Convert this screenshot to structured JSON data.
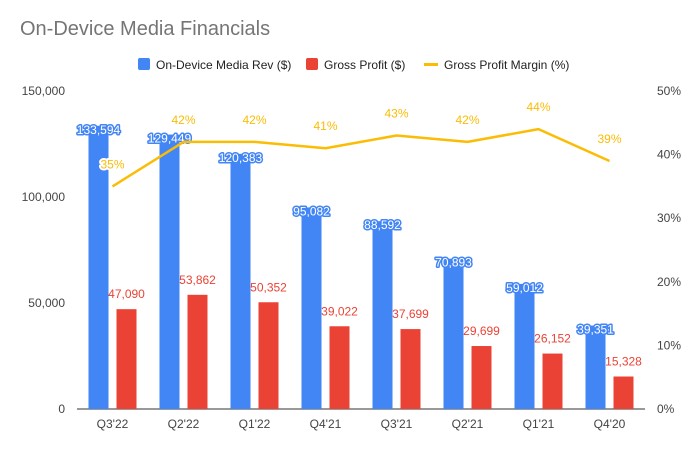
{
  "chart_data": {
    "type": "bar",
    "title": "On-Device Media Financials",
    "categories": [
      "Q3'22",
      "Q2'22",
      "Q1'22",
      "Q4'21",
      "Q3'21",
      "Q2'21",
      "Q1'21",
      "Q4'20"
    ],
    "series": [
      {
        "name": "On-Device Media Rev ($)",
        "type": "bar",
        "axis": "left",
        "color": "#4285F4",
        "values": [
          133594,
          129449,
          120383,
          95082,
          88592,
          70893,
          59012,
          39351
        ],
        "labels": [
          "133,594",
          "129,449",
          "120,383",
          "95,082",
          "88,592",
          "70,893",
          "59,012",
          "39,351"
        ]
      },
      {
        "name": "Gross Profit ($)",
        "type": "bar",
        "axis": "left",
        "color": "#EA4335",
        "values": [
          47090,
          53862,
          50352,
          39022,
          37699,
          29699,
          26152,
          15328
        ],
        "labels": [
          "47,090",
          "53,862",
          "50,352",
          "39,022",
          "37,699",
          "29,699",
          "26,152",
          "15,328"
        ]
      },
      {
        "name": "Gross Profit Margin (%)",
        "type": "line",
        "axis": "right",
        "color": "#FBBC04",
        "values": [
          35,
          42,
          42,
          41,
          43,
          42,
          44,
          39
        ],
        "labels": [
          "35%",
          "42%",
          "42%",
          "41%",
          "43%",
          "42%",
          "44%",
          "39%"
        ]
      }
    ],
    "y_left": {
      "ylim": [
        0,
        150000
      ],
      "ticks": [
        0,
        50000,
        100000,
        150000
      ],
      "tick_labels": [
        "0",
        "50,000",
        "100,000",
        "150,000"
      ]
    },
    "y_right": {
      "ylim": [
        0,
        50
      ],
      "ticks": [
        0,
        10,
        20,
        30,
        40,
        50
      ],
      "tick_labels": [
        "0%",
        "10%",
        "20%",
        "30%",
        "40%",
        "50%"
      ]
    },
    "grid": false,
    "legend_position": "top"
  }
}
